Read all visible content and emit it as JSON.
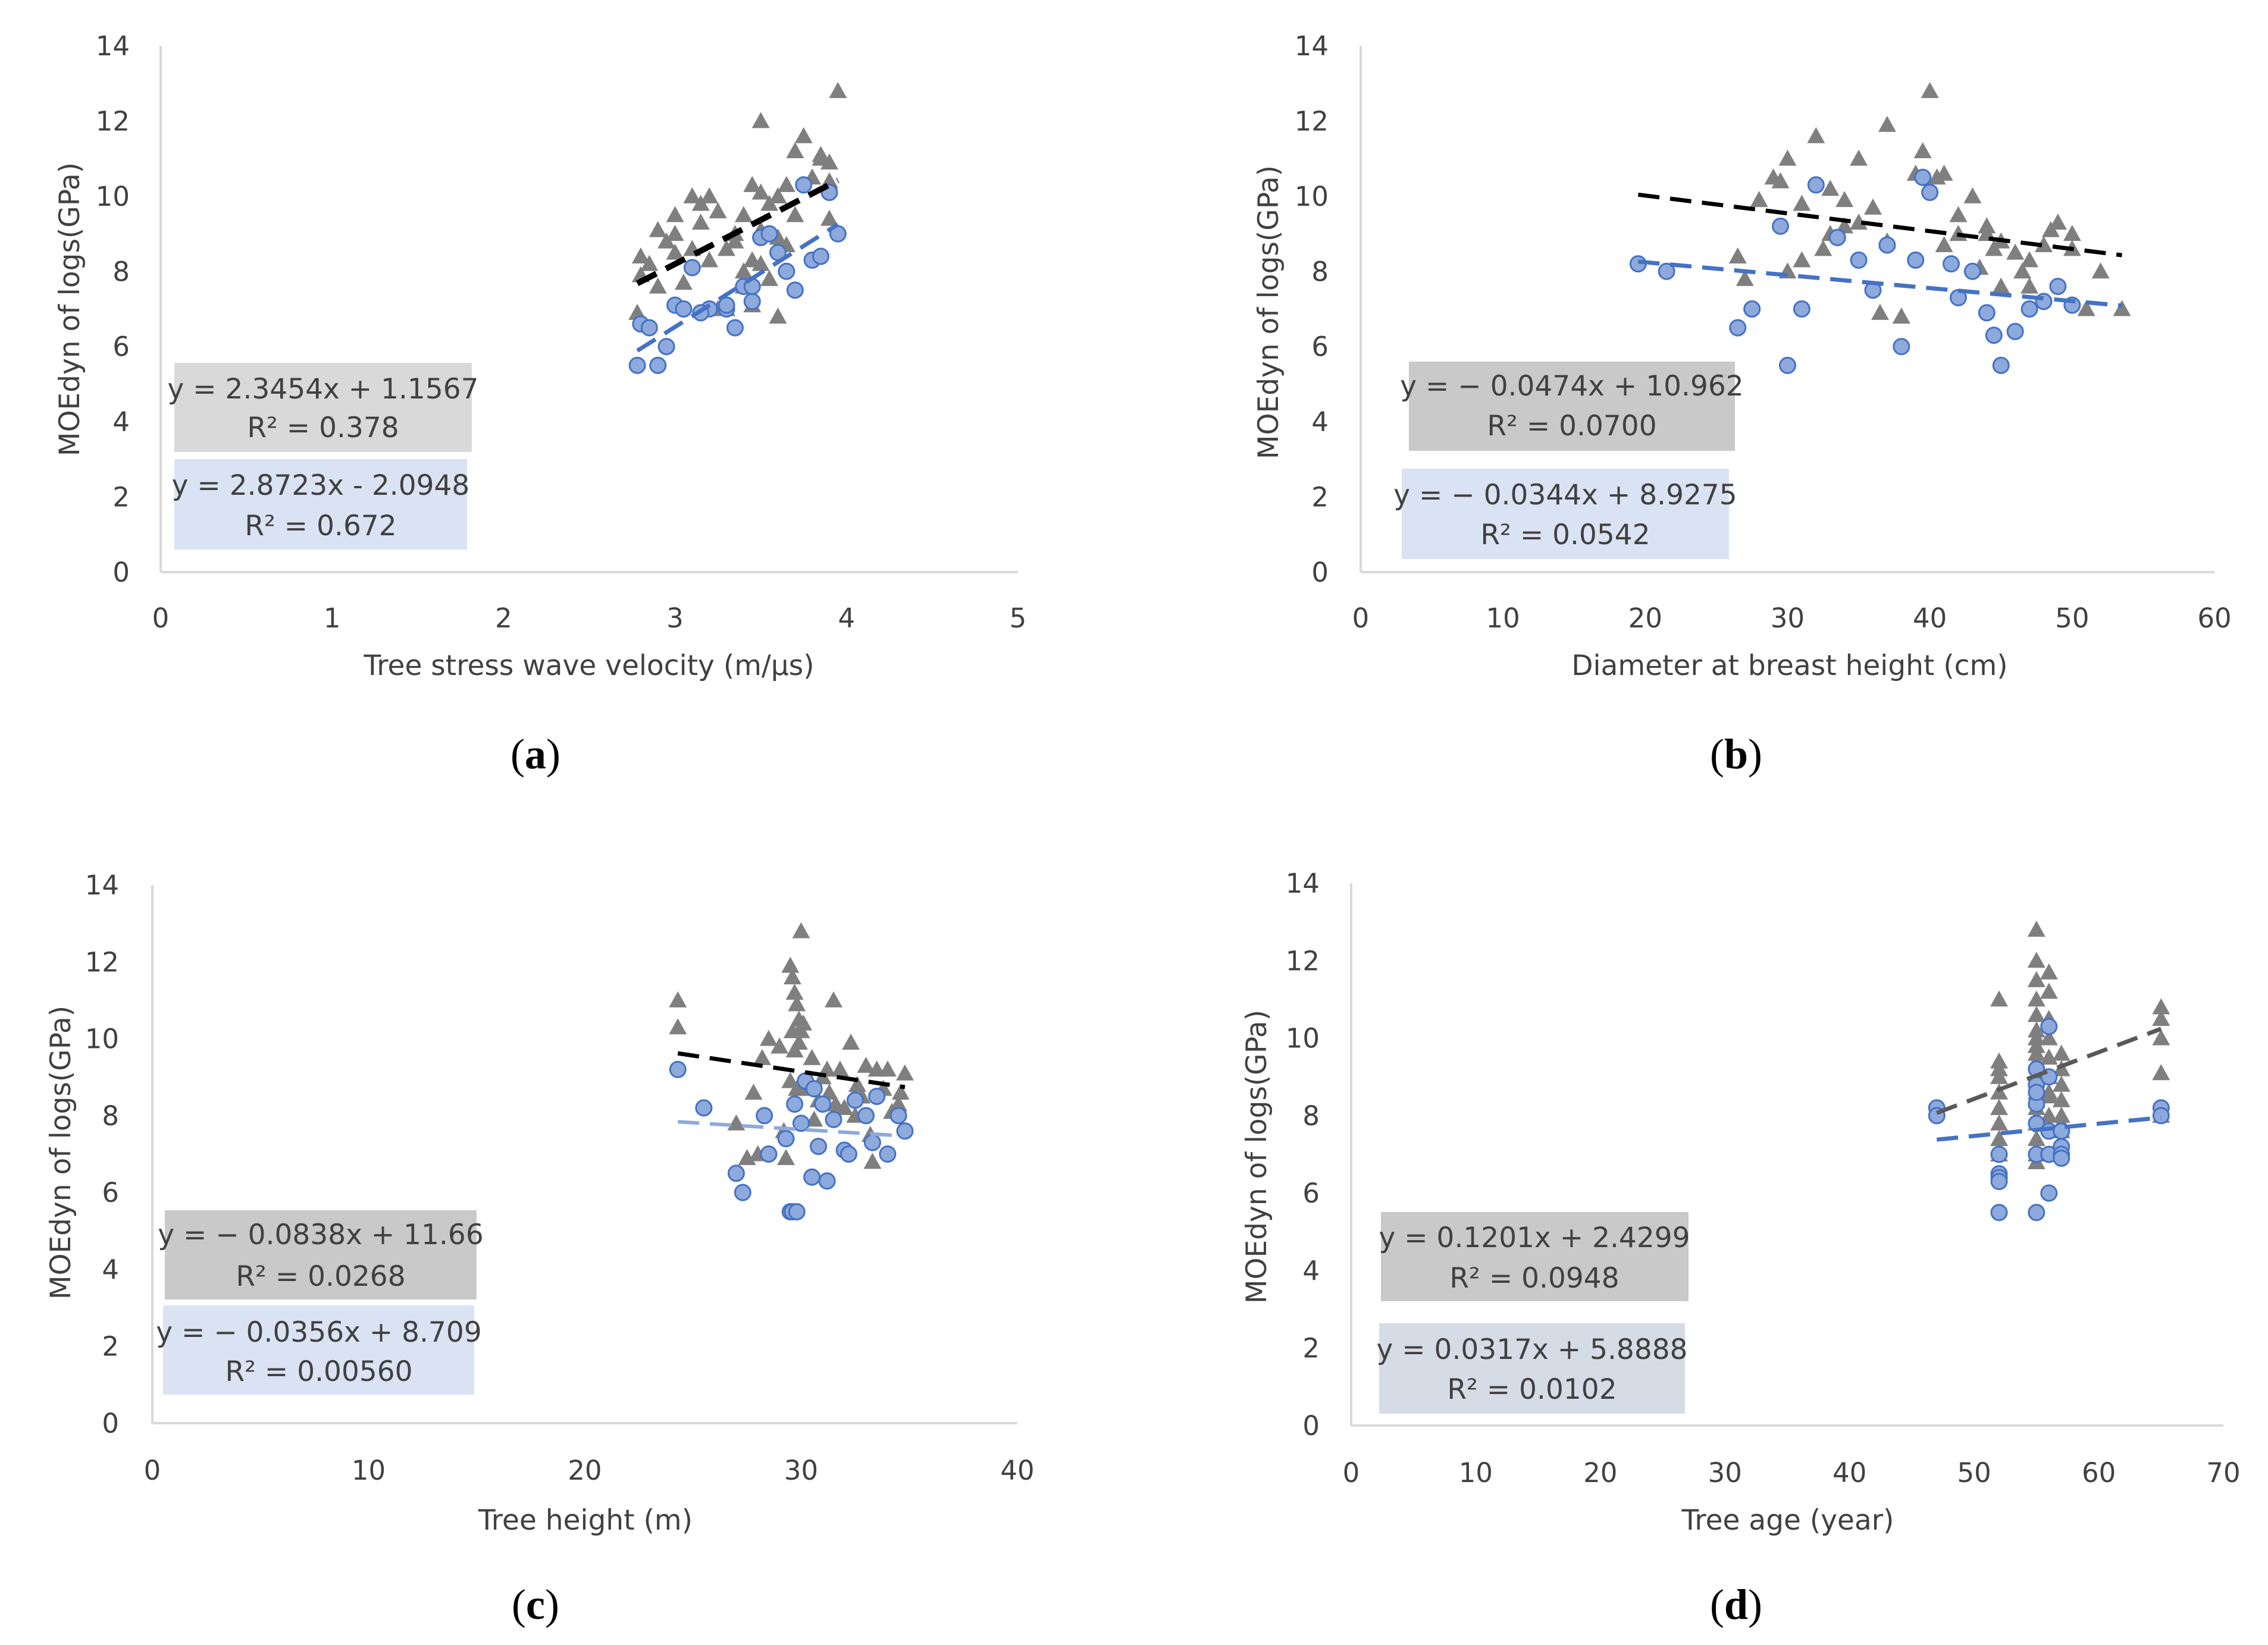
{
  "figure": {
    "panels": [
      "a",
      "b",
      "c",
      "d"
    ]
  },
  "colors": {
    "triangle": "#7f7f7f",
    "circle_fill": "#8ea9db",
    "circle_stroke": "#4472c4",
    "trend_black": "#000000",
    "trend_blue": "#4472c4",
    "trend_lightblue": "#8ea9db",
    "trend_darkgray": "#595959",
    "box_gray": "#d9d9d9",
    "box_darkgray": "#c9c9c9",
    "box_blue": "#dae3f3",
    "box_slate": "#d6dce5",
    "axis": "#d9d9d9"
  },
  "chart_data": [
    {
      "type": "scatter",
      "label_prefix": "(",
      "label": "a",
      "label_suffix": ")",
      "title": "",
      "xlabel": "Tree stress wave velocity (m/µs)",
      "ylabel": "MOEdyn of logs(GPa)",
      "xlim": [
        0,
        5
      ],
      "xticks": [
        0,
        1,
        2,
        3,
        4,
        5
      ],
      "ylim": [
        0,
        14
      ],
      "yticks": [
        0,
        2,
        4,
        6,
        8,
        10,
        12,
        14
      ],
      "series": [
        {
          "name": "triangles",
          "marker": "triangle",
          "x": [
            2.78,
            2.8,
            2.85,
            2.9,
            2.9,
            2.95,
            3.0,
            3.0,
            3.05,
            3.1,
            3.1,
            3.15,
            3.2,
            3.2,
            3.25,
            3.3,
            3.3,
            3.35,
            3.4,
            3.4,
            3.45,
            3.45,
            3.5,
            3.5,
            3.55,
            3.6,
            3.6,
            3.65,
            3.7,
            3.7,
            3.75,
            3.8,
            3.85,
            3.9,
            3.9,
            3.95,
            3.5,
            3.55,
            3.85,
            3.65,
            3.45,
            3.0,
            3.25,
            3.4,
            3.6,
            3.35,
            3.15,
            2.8,
            3.9,
            3.5
          ],
          "y": [
            6.9,
            8.4,
            8.2,
            9.1,
            7.6,
            8.8,
            8.5,
            9.0,
            7.7,
            8.6,
            10.0,
            9.3,
            10.0,
            8.3,
            9.6,
            8.6,
            7.0,
            8.8,
            9.5,
            7.6,
            8.3,
            10.3,
            9.1,
            12.0,
            9.8,
            6.8,
            8.9,
            10.3,
            9.5,
            11.2,
            11.6,
            10.5,
            11.0,
            9.4,
            10.9,
            12.8,
            10.1,
            7.8,
            11.1,
            8.7,
            7.1,
            9.5,
            7.0,
            8.0,
            10.0,
            9.0,
            9.8,
            7.9,
            10.4,
            8.2
          ]
        },
        {
          "name": "circles",
          "marker": "circle",
          "x": [
            2.78,
            2.8,
            2.85,
            2.9,
            2.95,
            3.0,
            3.05,
            3.1,
            3.2,
            3.3,
            3.35,
            3.4,
            3.45,
            3.5,
            3.55,
            3.6,
            3.65,
            3.7,
            3.75,
            3.8,
            3.85,
            3.9,
            3.95,
            3.45,
            3.3,
            3.15
          ],
          "y": [
            5.5,
            6.6,
            6.5,
            5.5,
            6.0,
            7.1,
            7.0,
            8.1,
            7.0,
            7.0,
            6.5,
            7.6,
            7.2,
            8.9,
            9.0,
            8.5,
            8.0,
            7.5,
            10.3,
            8.3,
            8.4,
            10.1,
            9.0,
            7.6,
            7.1,
            6.9
          ]
        },
        {
          "name": "trend_gray",
          "marker": "line",
          "x": [
            2.78,
            3.95
          ],
          "y": [
            7.68,
            10.42
          ]
        },
        {
          "name": "trend_blue",
          "marker": "line",
          "x": [
            2.78,
            3.95
          ],
          "y": [
            5.89,
            9.25
          ]
        }
      ],
      "annotations": [
        {
          "text": [
            "y = 2.3454x + 1.1567",
            "R² = 0.378"
          ],
          "box": "gray"
        },
        {
          "text": [
            "y = 2.8723x - 2.0948",
            "R² = 0.672"
          ],
          "box": "blue"
        }
      ]
    },
    {
      "type": "scatter",
      "label_prefix": "(",
      "label": "b",
      "label_suffix": ")",
      "title": "",
      "xlabel": "Diameter at breast height (cm)",
      "ylabel": "MOEdyn of logs(GPa)",
      "xlim": [
        0,
        60
      ],
      "xticks": [
        0,
        10,
        20,
        30,
        40,
        50,
        60
      ],
      "ylim": [
        0,
        14
      ],
      "yticks": [
        0,
        2,
        4,
        6,
        8,
        10,
        12,
        14
      ],
      "series": [
        {
          "name": "triangles",
          "marker": "triangle",
          "x": [
            26.5,
            28,
            29,
            30,
            31,
            32,
            33,
            34,
            35,
            36,
            37,
            38,
            39,
            40,
            41,
            42,
            43,
            44,
            45,
            46,
            47,
            48,
            49,
            50,
            51,
            52,
            53.5,
            30,
            32.5,
            37,
            39.5,
            40.5,
            44,
            45,
            48.5,
            35,
            38,
            42,
            31,
            29.5,
            34,
            36.5,
            41,
            43.5,
            46.5,
            50,
            27,
            33,
            47,
            44.5
          ],
          "y": [
            8.4,
            9.9,
            10.5,
            11.0,
            9.8,
            11.6,
            10.2,
            9.2,
            11.0,
            9.7,
            11.9,
            6.8,
            10.6,
            12.8,
            10.6,
            9.5,
            10.0,
            9.0,
            8.8,
            8.5,
            7.6,
            8.7,
            9.3,
            9.0,
            7.0,
            8.0,
            7.0,
            8.0,
            8.6,
            8.8,
            11.2,
            10.5,
            9.2,
            7.6,
            9.1,
            9.3,
            6.8,
            9.0,
            8.3,
            10.4,
            9.9,
            6.9,
            8.7,
            8.1,
            8.0,
            8.6,
            7.8,
            9.0,
            8.3,
            8.6
          ]
        },
        {
          "name": "circles",
          "marker": "circle",
          "x": [
            19.5,
            21.5,
            26.5,
            27.5,
            29.5,
            30,
            31,
            32,
            33.5,
            35,
            36,
            37,
            38,
            39,
            40,
            42,
            43,
            44,
            44.5,
            45,
            46,
            47,
            48,
            49,
            50,
            39.5,
            41.5
          ],
          "y": [
            8.2,
            8.0,
            6.5,
            7.0,
            9.2,
            5.5,
            7.0,
            10.3,
            8.9,
            8.3,
            7.5,
            8.7,
            6.0,
            8.3,
            10.1,
            7.3,
            8.0,
            6.9,
            6.3,
            5.5,
            6.4,
            7.0,
            7.2,
            7.6,
            7.1,
            10.5,
            8.2
          ]
        },
        {
          "name": "trend_black",
          "marker": "line",
          "x": [
            19.5,
            53.5
          ],
          "y": [
            10.04,
            8.43
          ]
        },
        {
          "name": "trend_blue",
          "marker": "line",
          "x": [
            19.5,
            53.5
          ],
          "y": [
            8.26,
            7.09
          ]
        }
      ],
      "annotations": [
        {
          "text": [
            "y = − 0.0474x + 10.962",
            "R² = 0.0700"
          ],
          "box": "darkgray"
        },
        {
          "text": [
            "y = − 0.0344x + 8.9275",
            "R² = 0.0542"
          ],
          "box": "blue"
        }
      ]
    },
    {
      "type": "scatter",
      "label_prefix": "(",
      "label": "c",
      "label_suffix": ")",
      "title": "",
      "xlabel": "Tree height (m)",
      "ylabel": "MOEdyn of logs(GPa)",
      "xlim": [
        0,
        40
      ],
      "xticks": [
        0,
        10,
        20,
        30,
        40
      ],
      "ylim": [
        0,
        14
      ],
      "yticks": [
        0,
        2,
        4,
        6,
        8,
        10,
        12,
        14
      ],
      "series": [
        {
          "name": "triangles",
          "marker": "triangle",
          "x": [
            24.3,
            24.3,
            27,
            27.5,
            28,
            28.5,
            29,
            29.3,
            29.5,
            29.6,
            29.7,
            29.8,
            29.9,
            30,
            30,
            30.2,
            30.5,
            30.8,
            31,
            31.3,
            31.5,
            32,
            32.3,
            32.5,
            33,
            33.3,
            33.5,
            34,
            34.5,
            34.8,
            29.5,
            29.6,
            29.7,
            29.8,
            30.1,
            31.2,
            32.8,
            33.2,
            34.2,
            28.2,
            29.2,
            30.3,
            31.8,
            33.8,
            27.8,
            34.6,
            29.9,
            30.6,
            31.6,
            32.6
          ],
          "y": [
            11.0,
            10.3,
            7.8,
            6.9,
            7.0,
            10.0,
            9.8,
            6.9,
            11.9,
            11.6,
            11.2,
            10.9,
            10.5,
            12.8,
            10.2,
            8.8,
            9.5,
            8.4,
            9.0,
            8.6,
            11.0,
            8.2,
            9.9,
            8.0,
            9.3,
            6.8,
            9.2,
            9.2,
            8.3,
            9.1,
            8.9,
            10.2,
            9.7,
            8.7,
            10.4,
            9.2,
            8.5,
            7.5,
            8.1,
            9.5,
            7.6,
            8.7,
            9.2,
            8.7,
            8.6,
            8.6,
            9.9,
            7.9,
            8.3,
            8.8
          ]
        },
        {
          "name": "circles",
          "marker": "circle",
          "x": [
            24.3,
            25.5,
            27,
            27.3,
            28.3,
            28.5,
            29.3,
            29.5,
            29.6,
            29.8,
            30,
            30.2,
            30.5,
            30.8,
            31,
            31.2,
            31.5,
            32,
            32.2,
            32.5,
            33,
            33.3,
            33.5,
            34,
            34.5,
            34.8,
            29.7,
            30.6
          ],
          "y": [
            9.2,
            8.2,
            6.5,
            6.0,
            8.0,
            7.0,
            7.4,
            5.5,
            5.5,
            5.5,
            7.8,
            8.9,
            6.4,
            7.2,
            8.3,
            6.3,
            7.9,
            7.1,
            7.0,
            8.4,
            8.0,
            7.3,
            8.5,
            7.0,
            8.0,
            7.6,
            8.3,
            8.7
          ]
        },
        {
          "name": "trend_black",
          "marker": "line",
          "x": [
            24.3,
            34.8
          ],
          "y": [
            9.62,
            8.74
          ]
        },
        {
          "name": "trend_lightblue",
          "marker": "line",
          "x": [
            24.3,
            34.8
          ],
          "y": [
            7.84,
            7.47
          ]
        }
      ],
      "annotations": [
        {
          "text": [
            "y = − 0.0838x + 11.66",
            "R² = 0.0268"
          ],
          "box": "darkgray"
        },
        {
          "text": [
            "y = − 0.0356x + 8.709",
            "R² = 0.00560"
          ],
          "box": "blue"
        }
      ]
    },
    {
      "type": "scatter",
      "label_prefix": "(",
      "label": "d",
      "label_suffix": ")",
      "title": "",
      "xlabel": "Tree age (year)",
      "ylabel": "MOEdyn of logs(GPa)",
      "xlim": [
        0,
        70
      ],
      "xticks": [
        0,
        10,
        20,
        30,
        40,
        50,
        60,
        70
      ],
      "ylim": [
        0,
        14
      ],
      "yticks": [
        0,
        2,
        4,
        6,
        8,
        10,
        12,
        14
      ],
      "series": [
        {
          "name": "triangles",
          "marker": "triangle",
          "x": [
            52,
            52,
            52,
            52,
            52,
            52,
            52,
            52,
            55,
            55,
            55,
            55,
            55,
            55,
            55,
            55,
            55,
            55,
            55,
            55,
            55,
            55,
            55,
            55,
            56,
            56,
            56,
            56,
            56,
            56,
            56,
            56,
            56,
            57,
            57,
            57,
            57,
            57,
            57,
            57,
            65,
            65,
            65,
            65,
            65,
            55,
            55,
            56,
            52,
            57
          ],
          "y": [
            11.0,
            9.4,
            9.0,
            8.6,
            8.2,
            7.8,
            7.4,
            7.0,
            12.8,
            12.0,
            11.5,
            11.0,
            10.6,
            10.2,
            9.8,
            9.4,
            9.0,
            8.6,
            8.2,
            7.8,
            7.4,
            7.0,
            6.8,
            10.0,
            11.7,
            11.2,
            10.5,
            10.0,
            9.5,
            9.0,
            8.5,
            8.0,
            7.0,
            9.6,
            9.2,
            8.8,
            8.4,
            8.0,
            7.6,
            7.2,
            10.8,
            10.5,
            10.0,
            9.1,
            8.0,
            8.4,
            9.6,
            8.6,
            9.2,
            7.8
          ]
        },
        {
          "name": "circles",
          "marker": "circle",
          "x": [
            47,
            47,
            52,
            52,
            52,
            52,
            55,
            55,
            55,
            55,
            55,
            55,
            56,
            56,
            56,
            56,
            56,
            57,
            57,
            57,
            57,
            65,
            65,
            55,
            52
          ],
          "y": [
            8.2,
            8.0,
            6.5,
            6.4,
            6.3,
            5.5,
            9.2,
            8.8,
            8.3,
            7.8,
            7.0,
            5.5,
            10.3,
            9.0,
            7.6,
            7.0,
            6.0,
            7.6,
            7.2,
            7.0,
            6.9,
            8.2,
            8.0,
            8.6,
            7.0
          ]
        },
        {
          "name": "trend_darkgray",
          "marker": "line",
          "x": [
            47,
            65
          ],
          "y": [
            8.07,
            10.24
          ]
        },
        {
          "name": "trend_blue",
          "marker": "line",
          "x": [
            47,
            65
          ],
          "y": [
            7.38,
            7.95
          ]
        }
      ],
      "annotations": [
        {
          "text": [
            "y = 0.1201x + 2.4299",
            "R² = 0.0948"
          ],
          "box": "darkgray"
        },
        {
          "text": [
            "y = 0.0317x + 5.8888",
            "R² = 0.0102"
          ],
          "box": "slate"
        }
      ]
    }
  ]
}
